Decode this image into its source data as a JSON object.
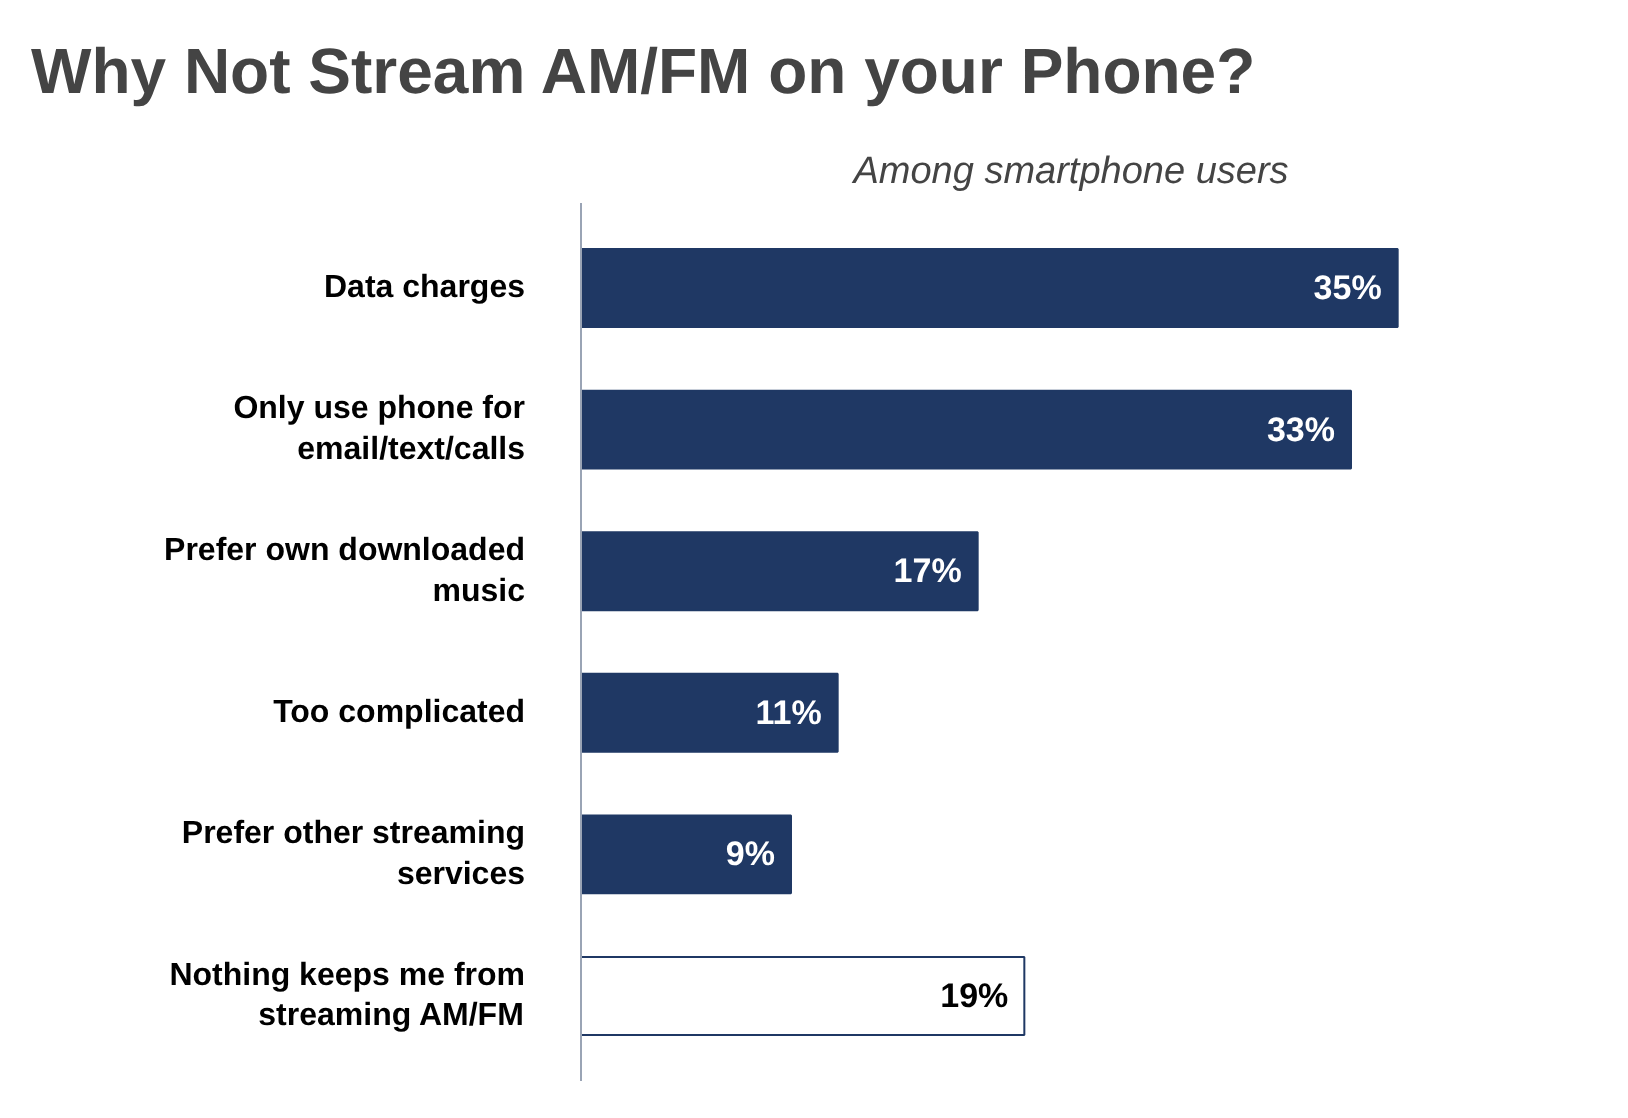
{
  "chart_data": {
    "type": "bar",
    "orientation": "horizontal",
    "title": "Why Not Stream AM/FM on your Phone?",
    "subtitle": "Among smartphone users",
    "categories": [
      "Data charges",
      "Only use phone for\nemail/text/calls",
      "Prefer own downloaded\nmusic",
      "Too complicated",
      "Prefer other streaming\nservices",
      "Nothing keeps me from\nstreaming AM/FM"
    ],
    "values": [
      35,
      33,
      17,
      11,
      9,
      19
    ],
    "colors": [
      "#1f3864",
      "#1f3864",
      "#1f3864",
      "#1f3864",
      "#1f3864",
      "#ffffff"
    ],
    "value_labels": [
      "35%",
      "33%",
      "17%",
      "11%",
      "9%",
      "19%"
    ],
    "tick_labels": "y",
    "grid": false
  }
}
